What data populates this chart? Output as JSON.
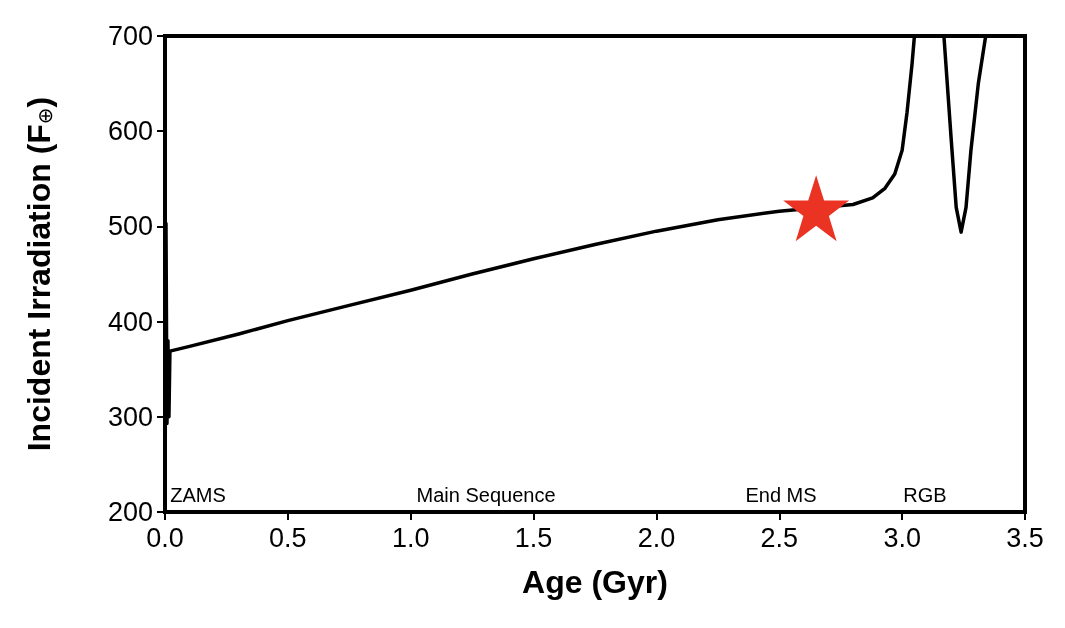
{
  "chart_data": {
    "type": "line",
    "xlabel": "Age (Gyr)",
    "ylabel": "Incident Irradiation (F$_{⊕}$)",
    "xlim": [
      0,
      3.5
    ],
    "ylim": [
      200,
      700
    ],
    "xticks": [
      {
        "value": 0,
        "label": "0.0"
      },
      0.5,
      {
        "value": 1,
        "label": "1.0"
      },
      1.5,
      {
        "value": 2,
        "label": "2.0"
      },
      2.5,
      {
        "value": 3,
        "label": "3.0"
      },
      3.5
    ],
    "yticks": [
      200,
      300,
      400,
      500,
      600,
      700
    ],
    "grid": false,
    "series": [
      {
        "color": "#000000",
        "marker": "none",
        "line_style": "solid",
        "x": [
          0.0,
          0.004,
          0.008,
          0.012,
          0.016,
          0.02,
          0.1,
          0.3,
          0.5,
          0.75,
          1.0,
          1.25,
          1.5,
          1.75,
          2.0,
          2.25,
          2.5,
          2.8,
          2.88,
          2.93,
          2.97,
          3.0,
          3.02,
          3.04,
          3.05,
          3.1,
          3.17,
          3.2,
          3.22,
          3.24,
          3.26,
          3.28,
          3.31,
          3.34
        ],
        "values": [
          200,
          503,
          293,
          380,
          300,
          369,
          374,
          387,
          401,
          417,
          433,
          450,
          466,
          481,
          495,
          507,
          516,
          523,
          530,
          540,
          555,
          580,
          620,
          670,
          700,
          null,
          700,
          590,
          520,
          494,
          520,
          580,
          650,
          700
        ]
      },
      {
        "type": "scatter",
        "color": "#ea3323",
        "marker": "star",
        "x": [
          2.65
        ],
        "values": [
          519
        ]
      }
    ],
    "annotations": [
      "ZAMS",
      "Main Sequence",
      "End MS",
      "RGB"
    ]
  }
}
